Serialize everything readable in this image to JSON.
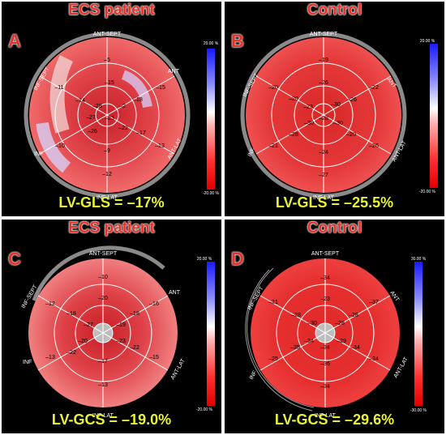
{
  "panels": [
    {
      "letter": "A",
      "title": "ECS patient",
      "metric": "LV-GLS = –17%",
      "scale_top": "20.00 %",
      "scale_bottom": "-20.00 %",
      "labels": {
        "ant_sept": "ANT-SEPT",
        "ant": "ANT",
        "ant_lat": "ANT-LAT",
        "inf_lat": "INF-LAT",
        "inf": "INF",
        "inf_sept": "INF-SEPT"
      },
      "segment_values": [
        "–5",
        "–15",
        "–11",
        "–14",
        "–10",
        "–9",
        "–12",
        "–13",
        "–17",
        "–18",
        "–15",
        "–26",
        "–28",
        "–2",
        "–22",
        "–23",
        "–27"
      ]
    },
    {
      "letter": "B",
      "title": "Control",
      "metric": "LV-GLS = –25.5%",
      "scale_top": "20.00 %",
      "scale_bottom": "-20.00 %",
      "labels": {
        "ant_sept": "ANT-SEPT",
        "ant": "ANT",
        "ant_lat": "ANT-LAT",
        "inf_lat": "INF-LAT",
        "inf": "INF",
        "inf_sept": "INF-SEPT"
      },
      "segment_values": [
        "–19",
        "–22",
        "–20",
        "–21",
        "–28",
        "–27",
        "–24",
        "–26",
        "–26",
        "–26",
        "–30",
        "–20",
        "–23",
        "–30",
        "–28",
        "–30",
        "–20"
      ]
    },
    {
      "letter": "C",
      "title": "ECS patient",
      "metric": "LV-GCS = –19.0%",
      "scale_top": "20.00 %",
      "scale_bottom": "-20.00 %",
      "labels": {
        "ant_sept": "ANT-SEPT",
        "ant": "ANT",
        "ant_lat": "ANT-LAT",
        "inf_lat": "INF-LAT",
        "inf": "INF",
        "inf_sept": "INF-SEPT"
      },
      "segment_values": [
        "–10",
        "–16",
        "–12",
        "–13",
        "–13",
        "–15",
        "–20",
        "–18",
        "–17",
        "–22",
        "–27",
        "–18",
        "–19",
        "–20",
        "–23",
        "–22"
      ]
    },
    {
      "letter": "D",
      "title": "Control",
      "metric": "LV-GCS = –29.6%",
      "scale_top": "30.00 %",
      "scale_bottom": "-30.00 %",
      "labels": {
        "ant_sept": "ANT-SEPT",
        "ant": "ANT",
        "ant_lat": "ANT-LAT",
        "inf_lat": "INF-LAT",
        "inf": "INF",
        "inf_sept": "INF-SEPT"
      },
      "segment_values": [
        "–34",
        "–37",
        "–21",
        "–25",
        "–34",
        "–34",
        "–23",
        "–28",
        "–34",
        "–36",
        "–35",
        "–28",
        "–30",
        "–28",
        "–34",
        "–29",
        "–34"
      ]
    }
  ]
}
